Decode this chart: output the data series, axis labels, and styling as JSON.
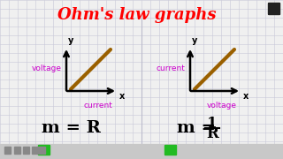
{
  "title": "Ohm's law graphs",
  "title_color": "#ff0000",
  "title_fontsize": 13,
  "bg_color": "#f0f0f0",
  "grid_color": "#c8c8d8",
  "line_color": "#9a6000",
  "axis_color": "#000000",
  "label_color_magenta": "#cc00cc",
  "left_xlabel": "current",
  "left_ylabel": "voltage",
  "right_xlabel": "voltage",
  "right_ylabel": "current",
  "left_formula": "m = R",
  "toolbar_bg": "#d0d0d0"
}
